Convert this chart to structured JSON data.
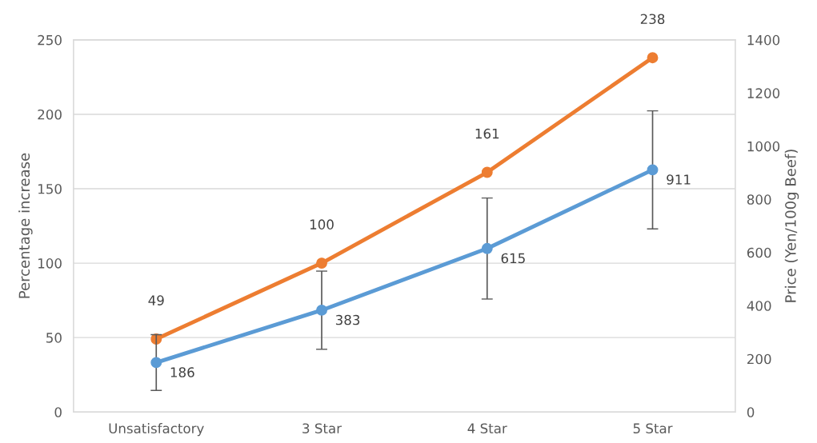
{
  "chart_data": {
    "type": "line",
    "categories": [
      "Unsatisfactory",
      "3 Star",
      "4 Star",
      "5 Star"
    ],
    "ylabel": "Percentage increase",
    "y2label": "Price (Yen/100g Beef)",
    "ylim": [
      0,
      250
    ],
    "yticks": [
      0,
      50,
      100,
      150,
      200,
      250
    ],
    "y2lim": [
      0,
      1400
    ],
    "y2ticks": [
      0,
      200,
      400,
      600,
      800,
      1000,
      1200,
      1400
    ],
    "grid": "y",
    "legend": false,
    "marker": "circle",
    "line_style": "solid",
    "data_labels": true,
    "series": [
      {
        "color": "#ed7d31",
        "values": [
          49,
          100,
          161,
          238
        ]
      },
      {
        "color": "#5b9bd5",
        "axis": "y2",
        "values": [
          186,
          383,
          615,
          911
        ],
        "errors": [
          105,
          147,
          190,
          222
        ]
      }
    ]
  }
}
